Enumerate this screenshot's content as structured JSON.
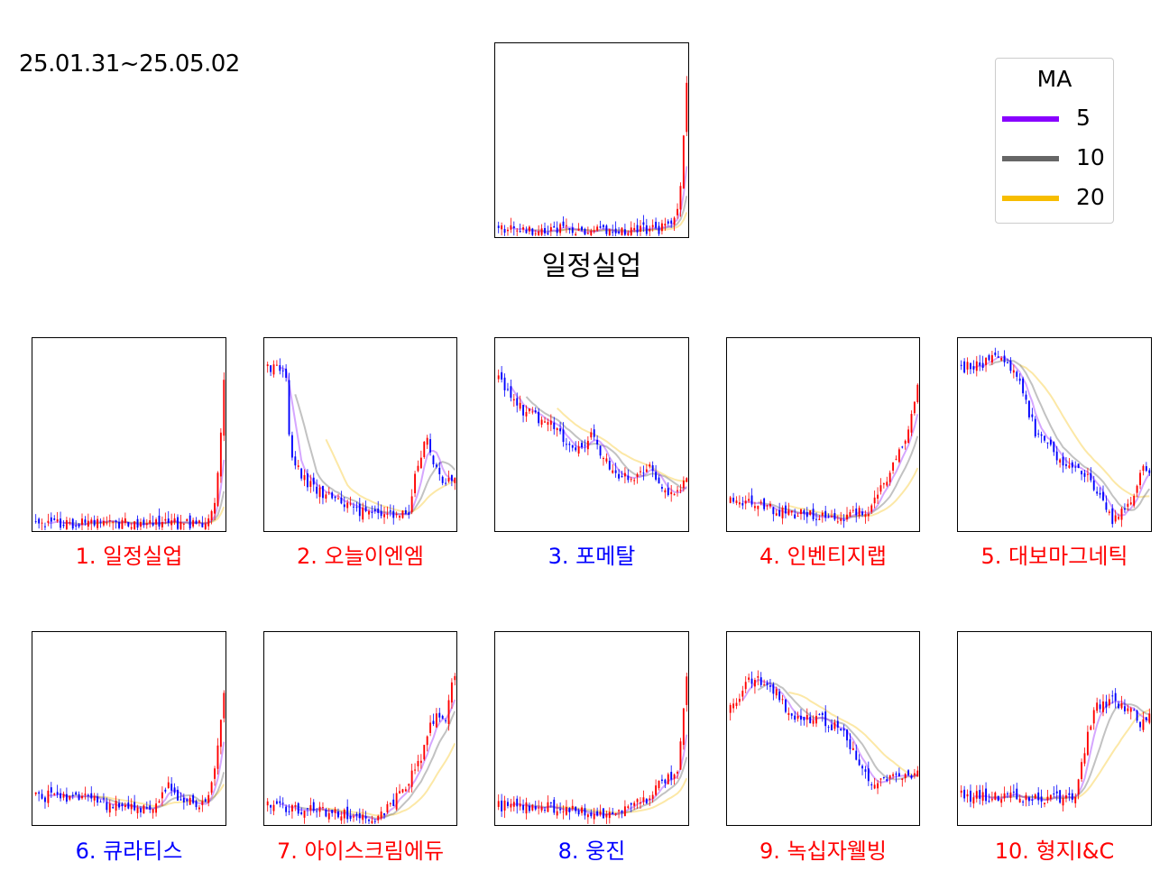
{
  "header": {
    "date_range": "25.01.31~25.05.02"
  },
  "legend": {
    "title": "MA",
    "items": [
      {
        "label": "5",
        "color": "#8800ff"
      },
      {
        "label": "10",
        "color": "#666666"
      },
      {
        "label": "20",
        "color": "#f7bd00"
      }
    ]
  },
  "colors": {
    "up": "#ff0000",
    "down": "#0000ff"
  },
  "chart_data": [
    {
      "type": "candlestick",
      "title": "일정실업",
      "title_color": "#000000",
      "shape": [
        [
          0,
          0.04
        ],
        [
          0.3,
          0.04
        ],
        [
          0.6,
          0.04
        ],
        [
          0.8,
          0.04
        ],
        [
          0.9,
          0.05
        ],
        [
          0.94,
          0.08
        ],
        [
          0.97,
          0.3
        ],
        [
          1,
          0.8
        ]
      ]
    },
    {
      "type": "candlestick",
      "title": "1. 일정실업",
      "title_color": "#ff0000",
      "shape": [
        [
          0,
          0.04
        ],
        [
          0.3,
          0.04
        ],
        [
          0.6,
          0.04
        ],
        [
          0.8,
          0.04
        ],
        [
          0.9,
          0.05
        ],
        [
          0.94,
          0.08
        ],
        [
          0.97,
          0.3
        ],
        [
          1,
          0.8
        ]
      ]
    },
    {
      "type": "candlestick",
      "title": "2. 오늘이엔엠",
      "title_color": "#ff0000",
      "shape": [
        [
          0,
          0.86
        ],
        [
          0.1,
          0.82
        ],
        [
          0.12,
          0.4
        ],
        [
          0.2,
          0.26
        ],
        [
          0.3,
          0.2
        ],
        [
          0.5,
          0.1
        ],
        [
          0.75,
          0.08
        ],
        [
          0.8,
          0.35
        ],
        [
          0.85,
          0.48
        ],
        [
          0.9,
          0.32
        ],
        [
          0.95,
          0.26
        ],
        [
          1,
          0.3
        ]
      ]
    },
    {
      "type": "candlestick",
      "title": "3. 포메탈",
      "title_color": "#0000ff",
      "shape": [
        [
          0,
          0.8
        ],
        [
          0.1,
          0.65
        ],
        [
          0.2,
          0.6
        ],
        [
          0.3,
          0.55
        ],
        [
          0.4,
          0.4
        ],
        [
          0.5,
          0.5
        ],
        [
          0.6,
          0.3
        ],
        [
          0.7,
          0.28
        ],
        [
          0.8,
          0.35
        ],
        [
          0.9,
          0.2
        ],
        [
          1,
          0.25
        ]
      ]
    },
    {
      "type": "candlestick",
      "title": "4. 인벤티지랩",
      "title_color": "#ff0000",
      "shape": [
        [
          0,
          0.16
        ],
        [
          0.3,
          0.1
        ],
        [
          0.5,
          0.08
        ],
        [
          0.6,
          0.06
        ],
        [
          0.75,
          0.12
        ],
        [
          0.85,
          0.3
        ],
        [
          0.92,
          0.45
        ],
        [
          0.97,
          0.6
        ],
        [
          1,
          0.75
        ]
      ]
    },
    {
      "type": "candlestick",
      "title": "5. 대보마그네틱",
      "title_color": "#ff0000",
      "shape": [
        [
          0,
          0.85
        ],
        [
          0.2,
          0.9
        ],
        [
          0.3,
          0.8
        ],
        [
          0.4,
          0.5
        ],
        [
          0.5,
          0.4
        ],
        [
          0.6,
          0.32
        ],
        [
          0.7,
          0.25
        ],
        [
          0.8,
          0.05
        ],
        [
          0.88,
          0.12
        ],
        [
          0.92,
          0.2
        ],
        [
          0.96,
          0.35
        ],
        [
          1,
          0.3
        ]
      ]
    },
    {
      "type": "candlestick",
      "title": "6. 큐라티스",
      "title_color": "#0000ff",
      "shape": [
        [
          0,
          0.15
        ],
        [
          0.2,
          0.15
        ],
        [
          0.4,
          0.1
        ],
        [
          0.6,
          0.08
        ],
        [
          0.7,
          0.2
        ],
        [
          0.8,
          0.12
        ],
        [
          0.9,
          0.1
        ],
        [
          0.95,
          0.3
        ],
        [
          1,
          0.7
        ]
      ]
    },
    {
      "type": "candlestick",
      "title": "7. 아이스크림에듀",
      "title_color": "#ff0000",
      "shape": [
        [
          0,
          0.1
        ],
        [
          0.3,
          0.07
        ],
        [
          0.5,
          0.05
        ],
        [
          0.6,
          0.04
        ],
        [
          0.7,
          0.15
        ],
        [
          0.8,
          0.3
        ],
        [
          0.85,
          0.45
        ],
        [
          0.9,
          0.6
        ],
        [
          0.95,
          0.55
        ],
        [
          1,
          0.8
        ]
      ]
    },
    {
      "type": "candlestick",
      "title": "8. 웅진",
      "title_color": "#0000ff",
      "shape": [
        [
          0,
          0.1
        ],
        [
          0.3,
          0.09
        ],
        [
          0.6,
          0.06
        ],
        [
          0.7,
          0.09
        ],
        [
          0.8,
          0.15
        ],
        [
          0.9,
          0.25
        ],
        [
          0.95,
          0.28
        ],
        [
          1,
          0.75
        ]
      ]
    },
    {
      "type": "candlestick",
      "title": "9. 녹십자웰빙",
      "title_color": "#ff0000",
      "shape": [
        [
          0,
          0.6
        ],
        [
          0.1,
          0.75
        ],
        [
          0.2,
          0.75
        ],
        [
          0.3,
          0.6
        ],
        [
          0.4,
          0.55
        ],
        [
          0.5,
          0.55
        ],
        [
          0.6,
          0.48
        ],
        [
          0.7,
          0.3
        ],
        [
          0.75,
          0.2
        ],
        [
          0.85,
          0.27
        ],
        [
          1,
          0.27
        ]
      ]
    },
    {
      "type": "candlestick",
      "title": "10. 형지I&C",
      "title_color": "#ff0000",
      "shape": [
        [
          0,
          0.15
        ],
        [
          0.2,
          0.15
        ],
        [
          0.4,
          0.13
        ],
        [
          0.5,
          0.15
        ],
        [
          0.6,
          0.12
        ],
        [
          0.65,
          0.35
        ],
        [
          0.7,
          0.6
        ],
        [
          0.8,
          0.65
        ],
        [
          0.9,
          0.6
        ],
        [
          0.95,
          0.52
        ],
        [
          1,
          0.58
        ]
      ]
    }
  ]
}
